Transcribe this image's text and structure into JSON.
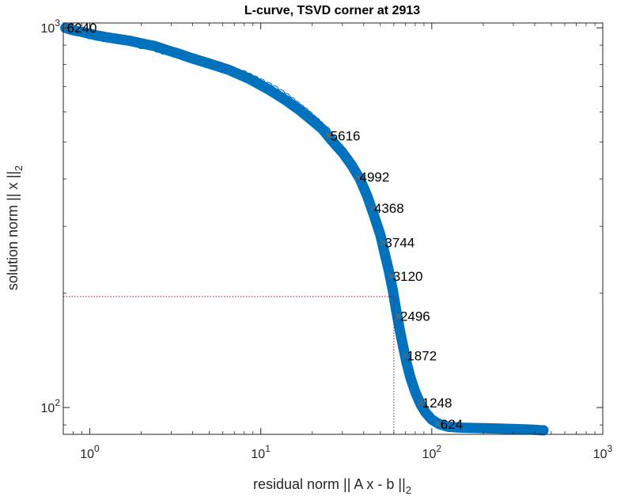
{
  "chart_data": {
    "type": "scatter",
    "title": "L-curve, TSVD corner at 2913",
    "xlabel": {
      "main": "residual norm || A x - b ||",
      "sub": "2"
    },
    "ylabel": {
      "main": "solution norm || x ||",
      "sub": "2"
    },
    "xscale": "log",
    "yscale": "log",
    "xlim": [
      0.7,
      1000
    ],
    "ylim": [
      85,
      1030
    ],
    "grid": false,
    "x_ticks": [
      {
        "value": 1,
        "base": "10",
        "exp": "0"
      },
      {
        "value": 10,
        "base": "10",
        "exp": "1"
      },
      {
        "value": 100,
        "base": "10",
        "exp": "2"
      },
      {
        "value": 1000,
        "base": "10",
        "exp": "3"
      }
    ],
    "y_ticks": [
      {
        "value": 100,
        "base": "10",
        "exp": "2"
      },
      {
        "value": 1000,
        "base": "10",
        "exp": "3"
      }
    ],
    "marker_color": "#0072BD",
    "corner_color": "#A2142F",
    "corner": {
      "label": "2913",
      "x": 60,
      "y": 196
    },
    "curve_points": [
      [
        0.72,
        1000
      ],
      [
        0.8,
        985
      ],
      [
        0.9,
        975
      ],
      [
        1.0,
        965
      ],
      [
        1.1,
        955
      ],
      [
        1.25,
        945
      ],
      [
        1.45,
        935
      ],
      [
        1.7,
        925
      ],
      [
        2.0,
        910
      ],
      [
        2.4,
        895
      ],
      [
        2.8,
        875
      ],
      [
        3.3,
        855
      ],
      [
        4.0,
        830
      ],
      [
        5.0,
        805
      ],
      [
        6.5,
        775
      ],
      [
        8.5,
        735
      ],
      [
        11,
        690
      ],
      [
        14,
        645
      ],
      [
        17,
        605
      ],
      [
        20,
        570
      ],
      [
        23,
        540
      ],
      [
        26,
        505
      ],
      [
        30,
        470
      ],
      [
        34,
        435
      ],
      [
        38,
        400
      ],
      [
        42,
        360
      ],
      [
        46,
        320
      ],
      [
        50,
        285
      ],
      [
        53,
        255
      ],
      [
        56,
        230
      ],
      [
        59,
        205
      ],
      [
        62,
        180
      ],
      [
        65,
        160
      ],
      [
        68,
        145
      ],
      [
        71,
        132
      ],
      [
        75,
        120
      ],
      [
        80,
        110
      ],
      [
        86,
        102
      ],
      [
        92,
        97
      ],
      [
        100,
        93
      ],
      [
        110,
        90.5
      ],
      [
        125,
        89
      ],
      [
        150,
        88.5
      ],
      [
        200,
        88.2
      ],
      [
        250,
        88
      ],
      [
        300,
        87.8
      ],
      [
        350,
        87.6
      ],
      [
        400,
        87.4
      ],
      [
        430,
        87.2
      ],
      [
        450,
        87.1
      ]
    ],
    "scatter_points": [
      [
        0.72,
        1000
      ],
      [
        0.85,
        980
      ],
      [
        1.0,
        960
      ],
      [
        1.2,
        945
      ],
      [
        1.4,
        935
      ],
      [
        2.0,
        905
      ],
      [
        2.5,
        885
      ],
      [
        2.7,
        875
      ],
      [
        2.9,
        870
      ],
      [
        3.2,
        858
      ],
      [
        3.6,
        845
      ],
      [
        3.9,
        835
      ],
      [
        4.1,
        830
      ],
      [
        4.6,
        815
      ],
      [
        5.0,
        805
      ],
      [
        5.3,
        800
      ],
      [
        5.8,
        790
      ],
      [
        6.2,
        780
      ],
      [
        6.8,
        770
      ],
      [
        7.3,
        760
      ],
      [
        7.9,
        752
      ],
      [
        8.5,
        740
      ],
      [
        9.2,
        728
      ],
      [
        10,
        715
      ],
      [
        11,
        700
      ],
      [
        12,
        685
      ],
      [
        13,
        670
      ],
      [
        14,
        655
      ],
      [
        15,
        640
      ],
      [
        16,
        625
      ],
      [
        17,
        612
      ],
      [
        18,
        600
      ],
      [
        19,
        588
      ],
      [
        20,
        575
      ],
      [
        21,
        565
      ],
      [
        22,
        553
      ],
      [
        24,
        535
      ],
      [
        300,
        87.8
      ],
      [
        330,
        87.6
      ],
      [
        360,
        87.5
      ],
      [
        390,
        87.3
      ],
      [
        410,
        87.2
      ],
      [
        430,
        87.1
      ],
      [
        450,
        87.0
      ]
    ],
    "labeled_points": [
      {
        "label": "6240",
        "x": 0.72,
        "y": 1000
      },
      {
        "label": "5616",
        "x": 25,
        "y": 520
      },
      {
        "label": "4992",
        "x": 37,
        "y": 405
      },
      {
        "label": "4368",
        "x": 45,
        "y": 335
      },
      {
        "label": "3744",
        "x": 52,
        "y": 272
      },
      {
        "label": "3120",
        "x": 58,
        "y": 222
      },
      {
        "label": "2496",
        "x": 64,
        "y": 174
      },
      {
        "label": "1872",
        "x": 70,
        "y": 137
      },
      {
        "label": "1248",
        "x": 86,
        "y": 103
      },
      {
        "label": "624",
        "x": 110,
        "y": 90.5
      }
    ]
  }
}
